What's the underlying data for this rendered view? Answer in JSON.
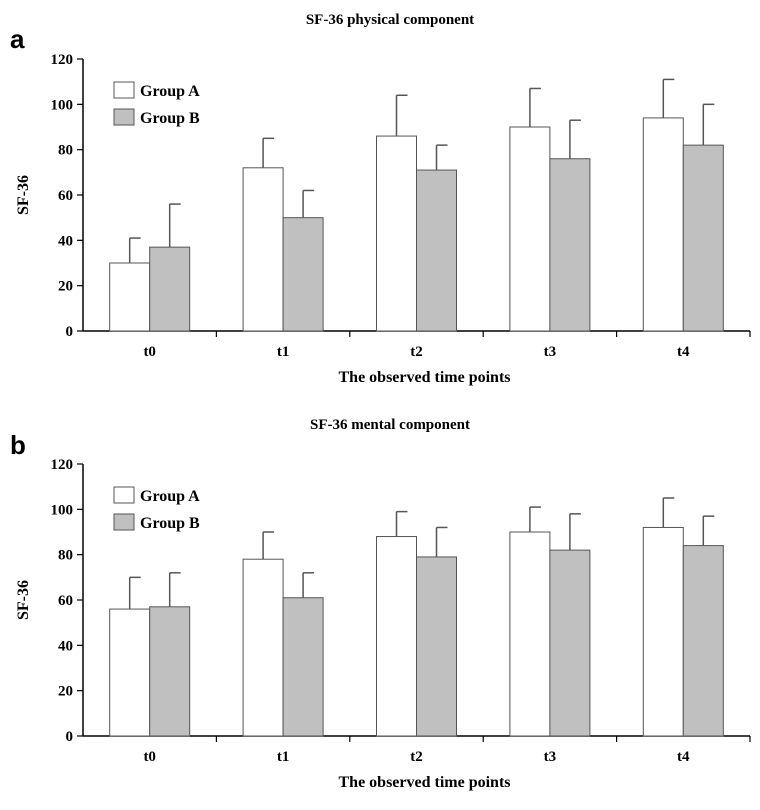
{
  "colors": {
    "group_a": "#ffffff",
    "group_b": "#c0c0c0",
    "axis": "#000000"
  },
  "chart_data": [
    {
      "type": "bar",
      "panel_label": "a",
      "title": "SF-36 physical component",
      "xlabel": "The observed time points",
      "ylabel": "SF-36",
      "ylim": [
        0,
        120
      ],
      "yticks": [
        "0",
        "20",
        "40",
        "60",
        "80",
        "100",
        "120"
      ],
      "categories": [
        "t0",
        "t1",
        "t2",
        "t3",
        "t4"
      ],
      "legend_position": "top-left",
      "series": [
        {
          "name": "Group A",
          "values": [
            30,
            72,
            86,
            90,
            94
          ],
          "errors": [
            11,
            13,
            18,
            17,
            17
          ]
        },
        {
          "name": "Group B",
          "values": [
            37,
            50,
            71,
            76,
            82
          ],
          "errors": [
            19,
            12,
            11,
            17,
            18
          ]
        }
      ]
    },
    {
      "type": "bar",
      "panel_label": "b",
      "title": "SF-36 mental component",
      "xlabel": "The observed time points",
      "ylabel": "SF-36",
      "ylim": [
        0,
        120
      ],
      "yticks": [
        "0",
        "20",
        "40",
        "60",
        "80",
        "100",
        "120"
      ],
      "categories": [
        "t0",
        "t1",
        "t2",
        "t3",
        "t4"
      ],
      "legend_position": "top-left",
      "series": [
        {
          "name": "Group A",
          "values": [
            56,
            78,
            88,
            90,
            92
          ],
          "errors": [
            14,
            12,
            11,
            11,
            13
          ]
        },
        {
          "name": "Group B",
          "values": [
            57,
            61,
            79,
            82,
            84
          ],
          "errors": [
            15,
            11,
            13,
            16,
            13
          ]
        }
      ]
    }
  ]
}
